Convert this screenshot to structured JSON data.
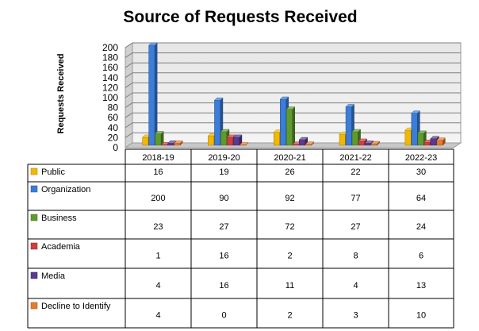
{
  "chart_data": {
    "type": "bar",
    "title": "Source of Requests Received",
    "ylabel": "Requests Received",
    "xlabel": "",
    "ylim": [
      0,
      200
    ],
    "yticks": [
      0,
      20,
      40,
      60,
      80,
      100,
      120,
      140,
      160,
      180,
      200
    ],
    "grid": true,
    "three_d": true,
    "legend_placement": "data-table-left",
    "categories": [
      "2018-19",
      "2019-20",
      "2020-21",
      "2021-22",
      "2022-23"
    ],
    "series": [
      {
        "name": "Public",
        "color": "#F2B700",
        "values": [
          16,
          19,
          26,
          22,
          30
        ]
      },
      {
        "name": "Organization",
        "color": "#3B7DD8",
        "values": [
          200,
          90,
          92,
          77,
          64
        ]
      },
      {
        "name": "Business",
        "color": "#5E9A2E",
        "values": [
          23,
          27,
          72,
          27,
          24
        ]
      },
      {
        "name": "Academia",
        "color": "#D03E3E",
        "values": [
          1,
          16,
          2,
          8,
          6
        ]
      },
      {
        "name": "Media",
        "color": "#5A3A8E",
        "values": [
          4,
          16,
          11,
          4,
          13
        ]
      },
      {
        "name": "Decline to Identify",
        "color": "#E87A2D",
        "values": [
          4,
          0,
          2,
          3,
          10
        ]
      }
    ]
  }
}
